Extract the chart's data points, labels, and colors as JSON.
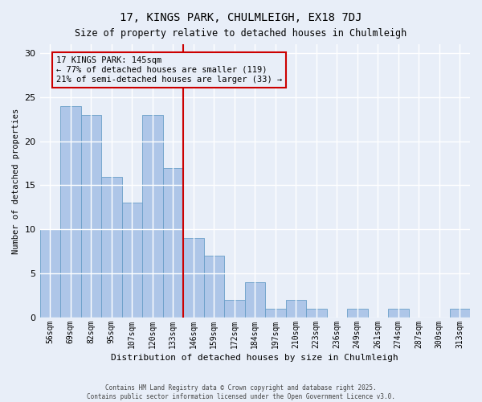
{
  "title": "17, KINGS PARK, CHULMLEIGH, EX18 7DJ",
  "subtitle": "Size of property relative to detached houses in Chulmleigh",
  "xlabel": "Distribution of detached houses by size in Chulmleigh",
  "ylabel": "Number of detached properties",
  "categories": [
    "56sqm",
    "69sqm",
    "82sqm",
    "95sqm",
    "107sqm",
    "120sqm",
    "133sqm",
    "146sqm",
    "159sqm",
    "172sqm",
    "184sqm",
    "197sqm",
    "210sqm",
    "223sqm",
    "236sqm",
    "249sqm",
    "261sqm",
    "274sqm",
    "287sqm",
    "300sqm",
    "313sqm"
  ],
  "all_values": [
    10,
    24,
    23,
    16,
    13,
    23,
    17,
    9,
    7,
    2,
    4,
    1,
    2,
    1,
    0,
    1,
    0,
    1,
    0,
    0,
    1
  ],
  "bar_color": "#aec6e8",
  "bar_edge_color": "#6a9fc8",
  "bg_color": "#e8eef8",
  "grid_color": "#ffffff",
  "vline_idx": 7,
  "vline_color": "#cc0000",
  "annotation_text": "17 KINGS PARK: 145sqm\n← 77% of detached houses are smaller (119)\n21% of semi-detached houses are larger (33) →",
  "annotation_box_color": "#cc0000",
  "footer_line1": "Contains HM Land Registry data © Crown copyright and database right 2025.",
  "footer_line2": "Contains public sector information licensed under the Open Government Licence v3.0.",
  "ylim": [
    0,
    31
  ],
  "yticks": [
    0,
    5,
    10,
    15,
    20,
    25,
    30
  ]
}
